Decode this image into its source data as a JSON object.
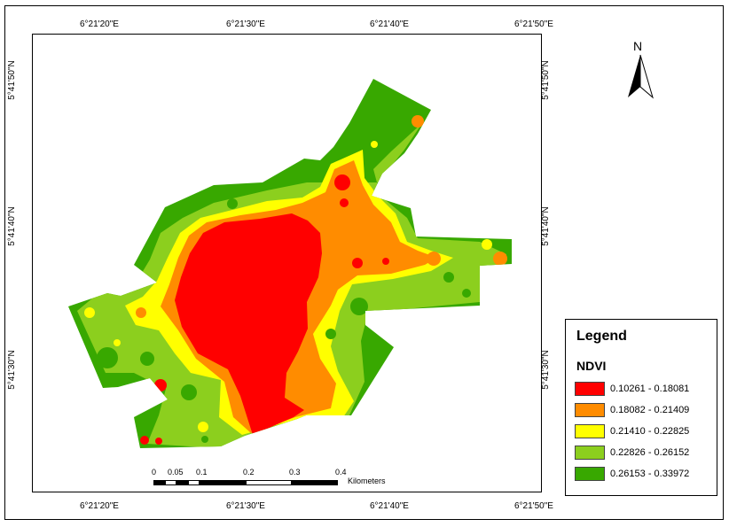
{
  "top_ticks": [
    "6°21'20\"E",
    "6°21'30\"E",
    "6°21'40\"E",
    "6°21'50\"E"
  ],
  "bottom_ticks": [
    "6°21'20\"E",
    "6°21'30\"E",
    "6°21'40\"E",
    "6°21'50\"E"
  ],
  "left_ticks": [
    "5°41'50\"N",
    "5°41'40\"N",
    "5°41'30\"N"
  ],
  "right_ticks": [
    "5°41'50\"N",
    "5°41'40\"N",
    "5°41'30\"N"
  ],
  "north_arrow": {
    "label": "N",
    "icon": "north-arrow-icon"
  },
  "legend": {
    "title": "Legend",
    "field": "NDVI",
    "classes": [
      {
        "label": "0.10261 - 0.18081",
        "color": "#ff0000"
      },
      {
        "label": "0.18082 - 0.21409",
        "color": "#ff8c00"
      },
      {
        "label": "0.21410 - 0.22825",
        "color": "#ffff00"
      },
      {
        "label": "0.22826 - 0.26152",
        "color": "#8ccf1e"
      },
      {
        "label": "0.26153 - 0.33972",
        "color": "#38a800"
      }
    ]
  },
  "scale_bar": {
    "labels": [
      "0",
      "0.05",
      "0.1",
      "0.2",
      "0.3",
      "0.4"
    ],
    "unit": "Kilometers"
  }
}
